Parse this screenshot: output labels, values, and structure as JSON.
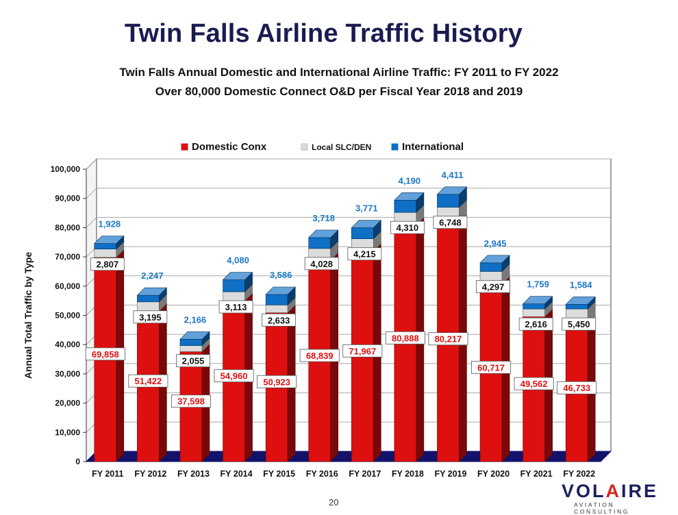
{
  "page": {
    "title": "Twin Falls Airline Traffic History",
    "subtitle_1": "Twin Falls Annual Domestic and International Airline Traffic: FY 2011 to FY 2022",
    "subtitle_2": "Over 80,000 Domestic Connect O&D per Fiscal Year 2018 and 2019",
    "page_number": "20"
  },
  "logo": {
    "main_pre": "VOL",
    "main_accent": "A",
    "main_post": "IRE",
    "sub": "AVIATION CONSULTING"
  },
  "colors": {
    "domestic": "#dd0f0f",
    "local": "#dcdcdc",
    "international": "#0e6fc4",
    "floor": "#12126b",
    "title": "#1b1b52",
    "intl_label": "#1b77c9",
    "dom_label": "#e01010"
  },
  "chart_data": {
    "type": "bar",
    "stacked": true,
    "three_d": true,
    "categories": [
      "FY 2011",
      "FY 2012",
      "FY 2013",
      "FY 2014",
      "FY 2015",
      "FY 2016",
      "FY 2017",
      "FY 2018",
      "FY 2019",
      "FY 2020",
      "FY 2021",
      "FY 2022"
    ],
    "series": [
      {
        "name": "Domestic Conx",
        "color": "#dd0f0f",
        "values": [
          69858,
          51422,
          37598,
          54960,
          50923,
          68839,
          71967,
          80888,
          80217,
          60717,
          49562,
          46733
        ]
      },
      {
        "name": "Local SLC/DEN",
        "color": "#dcdcdc",
        "values": [
          2807,
          3195,
          2055,
          3113,
          2633,
          4028,
          4215,
          4310,
          6748,
          4297,
          2616,
          5450
        ]
      },
      {
        "name": "International",
        "color": "#0e6fc4",
        "values": [
          1928,
          2247,
          2166,
          4080,
          3586,
          3718,
          3771,
          4190,
          4411,
          2945,
          1759,
          1584
        ]
      }
    ],
    "ylabel": "Annual Total Traffic by Type",
    "xlabel": "",
    "ylim": [
      0,
      100000
    ],
    "yticks": [
      "0",
      "10,000",
      "20,000",
      "30,000",
      "40,000",
      "50,000",
      "60,000",
      "70,000",
      "80,000",
      "90,000",
      "100,000"
    ],
    "grid": true,
    "legend_position": "top"
  }
}
